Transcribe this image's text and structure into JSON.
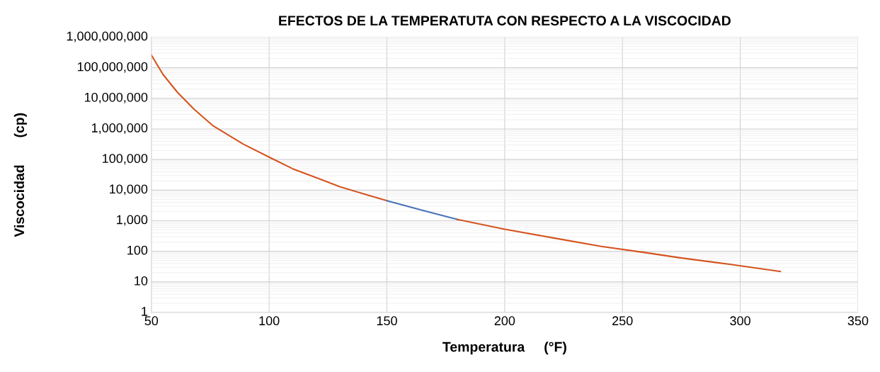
{
  "chart_data": {
    "type": "line",
    "title": "EFECTOS DE LA TEMPERATUTA CON RESPECTO A LA VISCOCIDAD",
    "xlabel": "Temperatura     (°F)",
    "ylabel": "Viscocidad       (cp)",
    "log": "y",
    "grid": true,
    "xlim": [
      50,
      350
    ],
    "xticks": [
      50,
      100,
      150,
      200,
      250,
      300,
      350
    ],
    "ylim": [
      1,
      1000000000
    ],
    "yticks": [
      {
        "value": 1,
        "label": "1"
      },
      {
        "value": 10,
        "label": "10"
      },
      {
        "value": 100,
        "label": "100"
      },
      {
        "value": 1000,
        "label": "1,000"
      },
      {
        "value": 10000,
        "label": "10,000"
      },
      {
        "value": 100000,
        "label": "100,000"
      },
      {
        "value": 1000000,
        "label": "1,000,000"
      },
      {
        "value": 10000000,
        "label": "10,000,000"
      },
      {
        "value": 100000000,
        "label": "100,000,000"
      },
      {
        "value": 1000000000,
        "label": "1,000,000,000"
      }
    ],
    "series": [
      {
        "color": "#d4541f",
        "x": [
          50,
          55,
          61,
          68,
          76,
          89,
          100,
          110,
          121,
          130,
          140,
          150
        ],
        "values": [
          260000000,
          60000000,
          16000000,
          4500000,
          1300000,
          320000,
          120000,
          50000,
          24000,
          13000,
          7600,
          4500
        ]
      },
      {
        "color": "#4a72b8",
        "x": [
          150,
          165,
          180
        ],
        "values": [
          4500,
          2200,
          1100
        ]
      },
      {
        "color": "#d4541f",
        "x": [
          180,
          200,
          220,
          241,
          260,
          274,
          295,
          317
        ],
        "values": [
          1100,
          530,
          280,
          145,
          90,
          62,
          38,
          22
        ]
      }
    ]
  }
}
